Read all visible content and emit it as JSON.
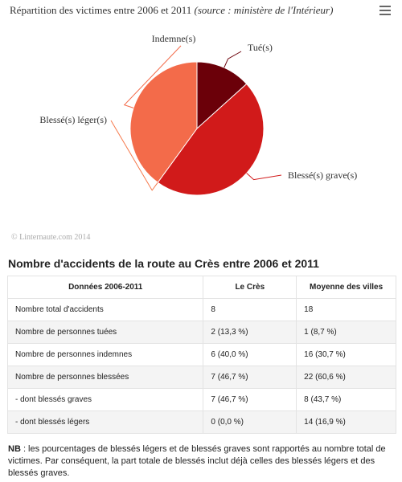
{
  "chart_data": {
    "type": "pie",
    "title": "Répartition des victimes entre 2006 et 2011",
    "subtitle": "(source : ministère de l'Intérieur)",
    "slices": [
      {
        "label": "Tué(s)",
        "value": 2,
        "color": "#6b0009"
      },
      {
        "label": "Blessé(s) grave(s)",
        "value": 7,
        "color": "#d11a1a"
      },
      {
        "label": "Blessé(s) léger(s)",
        "value": 0,
        "color": "#f6784a"
      },
      {
        "label": "Indemne(s)",
        "value": 6,
        "color": "#f36b4a"
      }
    ],
    "credit": "© Linternaute.com 2014"
  },
  "table": {
    "title": "Nombre d'accidents de la route au Crès entre 2006 et 2011",
    "headers": [
      "Données 2006-2011",
      "Le Crès",
      "Moyenne des villes"
    ],
    "rows": [
      [
        "Nombre total d'accidents",
        "8",
        "18"
      ],
      [
        "Nombre de personnes tuées",
        "2 (13,3 %)",
        "1 (8,7 %)"
      ],
      [
        "Nombre de personnes indemnes",
        "6 (40,0 %)",
        "16 (30,7 %)"
      ],
      [
        "Nombre de personnes blessées",
        "7 (46,7 %)",
        "22 (60,6 %)"
      ],
      [
        "- dont blessés graves",
        "7 (46,7 %)",
        "8 (43,7 %)"
      ],
      [
        "- dont blessés légers",
        "0 (0,0 %)",
        "14 (16,9 %)"
      ]
    ]
  },
  "note": {
    "bold": "NB",
    "text": " : les pourcentages de blessés légers et de blessés graves sont rapportés au nombre total de victimes. Par conséquent, la part totale de blessés inclut déjà celles des blessés légers et des blessés graves."
  }
}
